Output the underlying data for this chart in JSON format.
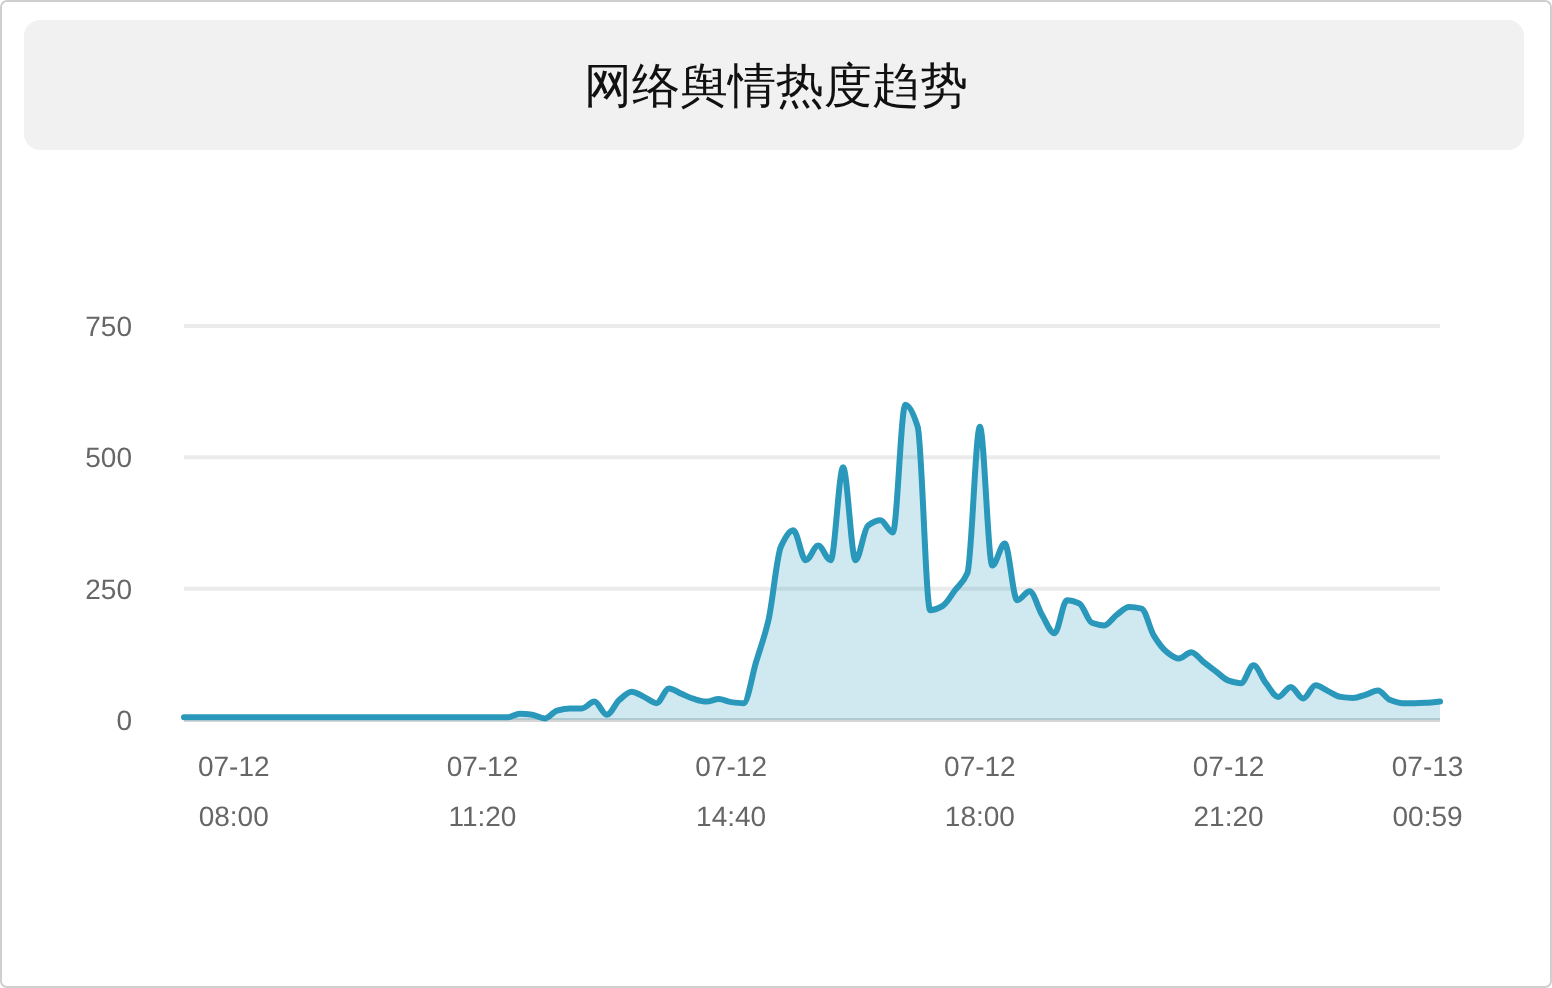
{
  "chart_data": {
    "type": "area",
    "title": "网络舆情热度趋势",
    "categories": [
      null,
      null,
      null,
      null,
      "07-12\n08:00",
      null,
      null,
      null,
      null,
      null,
      null,
      null,
      null,
      null,
      null,
      null,
      null,
      null,
      null,
      null,
      null,
      null,
      null,
      null,
      "07-12\n11:20",
      null,
      null,
      null,
      null,
      null,
      null,
      null,
      null,
      null,
      null,
      null,
      null,
      null,
      null,
      null,
      null,
      null,
      null,
      null,
      "07-12\n14:40",
      null,
      null,
      null,
      null,
      null,
      null,
      null,
      null,
      null,
      null,
      null,
      null,
      null,
      null,
      null,
      null,
      null,
      null,
      null,
      "07-12\n18:00",
      null,
      null,
      null,
      null,
      null,
      null,
      null,
      null,
      null,
      null,
      null,
      null,
      null,
      null,
      null,
      null,
      null,
      null,
      null,
      "07-12\n21:20",
      null,
      null,
      null,
      null,
      null,
      null,
      null,
      null,
      null,
      null,
      null,
      null,
      null,
      null,
      null,
      "07-13\n00:59",
      null
    ],
    "series": [
      {
        "color": "#2a98bb",
        "values": [
          5,
          5,
          5,
          5,
          5,
          5,
          5,
          5,
          5,
          5,
          5,
          5,
          5,
          5,
          5,
          5,
          5,
          5,
          5,
          5,
          5,
          5,
          5,
          5,
          5,
          5,
          5,
          12,
          10,
          3,
          18,
          22,
          22,
          35,
          10,
          38,
          54,
          44,
          32,
          60,
          50,
          40,
          35,
          40,
          34,
          32,
          110,
          190,
          330,
          361,
          304,
          332,
          304,
          481,
          304,
          370,
          380,
          357,
          600,
          558,
          209,
          217,
          247,
          280,
          558,
          294,
          336,
          228,
          245,
          200,
          165,
          228,
          222,
          185,
          180,
          200,
          215,
          212,
          160,
          130,
          117,
          129,
          110,
          92,
          75,
          70,
          104,
          70,
          44,
          63,
          41,
          66,
          55,
          44,
          42,
          48,
          56,
          38,
          32,
          32,
          33,
          35
        ]
      }
    ],
    "ylim": [
      0,
      750
    ],
    "yticks": [
      0,
      250,
      500,
      750
    ],
    "grid": "y",
    "marker": "none"
  }
}
